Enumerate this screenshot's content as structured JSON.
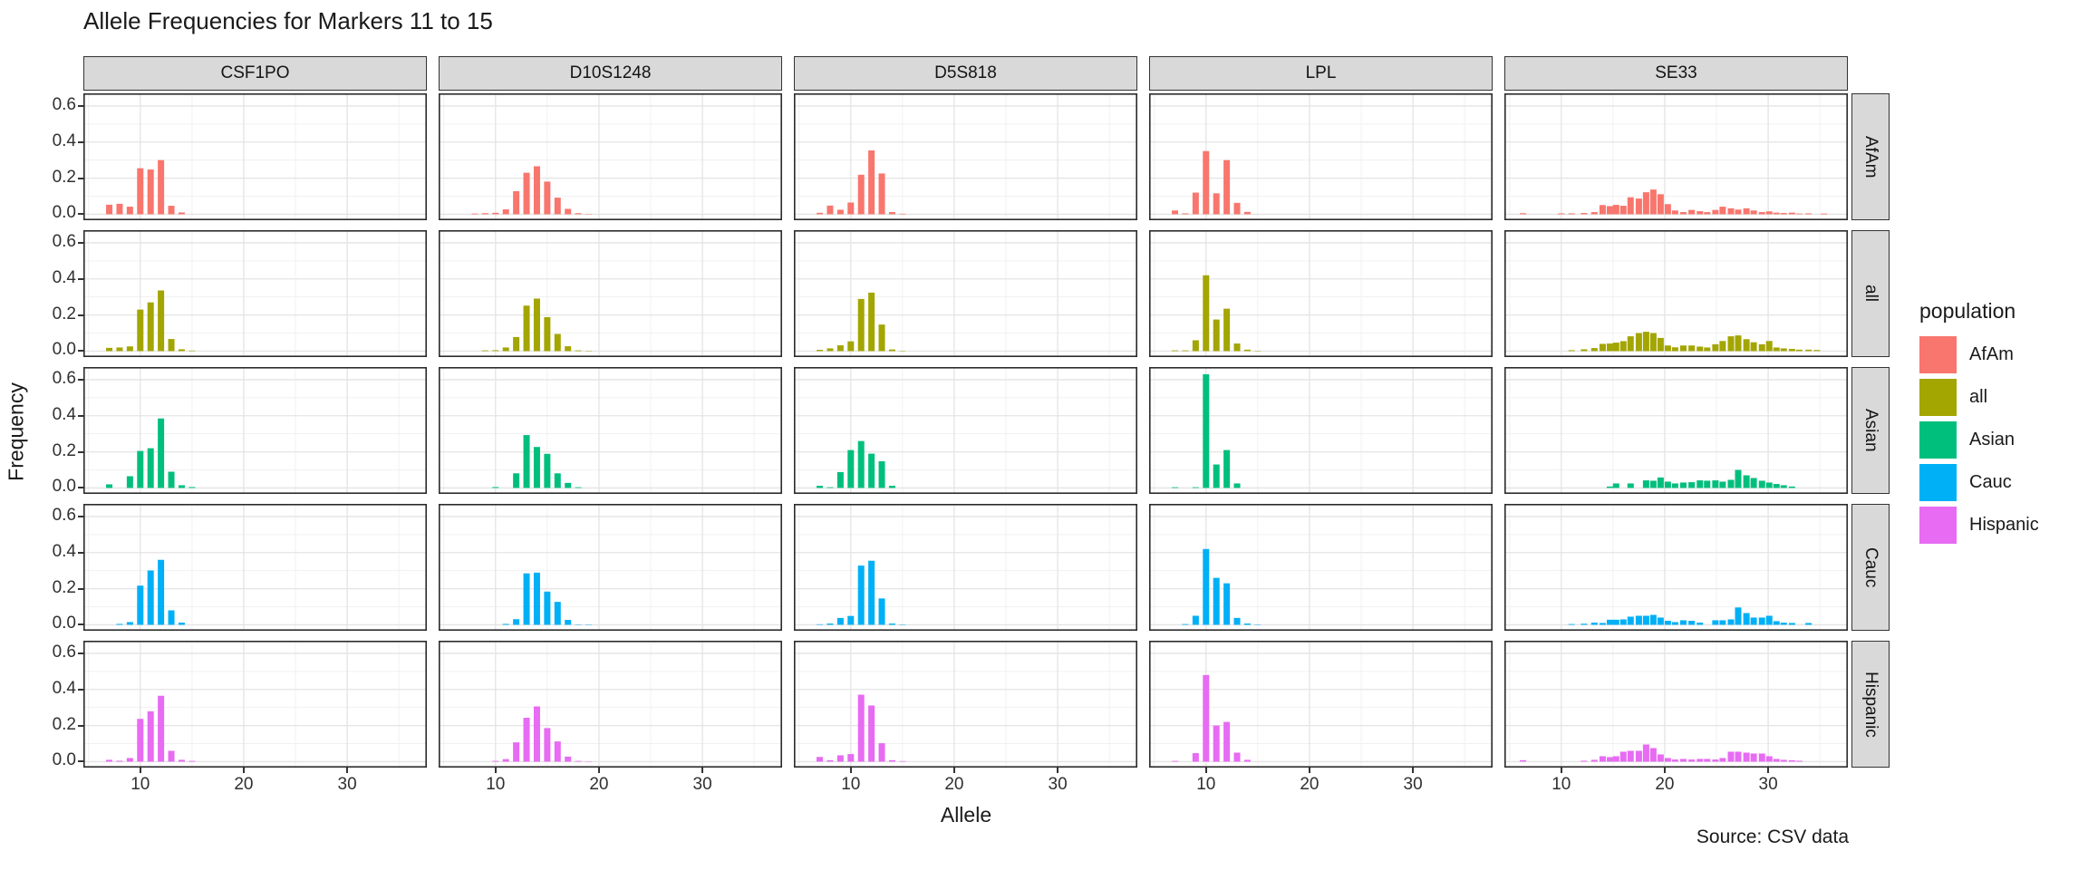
{
  "title": "Allele Frequencies for Markers 11 to 15",
  "caption": "Source: CSV data",
  "legend": {
    "title": "population",
    "entries": [
      {
        "label": "AfAm",
        "color": "#F8766D"
      },
      {
        "label": "all",
        "color": "#A3A500"
      },
      {
        "label": "Asian",
        "color": "#00BF7D"
      },
      {
        "label": "Cauc",
        "color": "#00B0F6"
      },
      {
        "label": "Hispanic",
        "color": "#E76BF3"
      }
    ]
  },
  "theme": {
    "strip_bg": "#d9d9d9",
    "panel_border": "#2b2b2b",
    "grid_major": "#e4e4e4",
    "grid_minor": "#f1f1f1",
    "axis_text": "#303030"
  },
  "chart_data": {
    "type": "bar",
    "title": "Allele Frequencies for Markers 11 to 15",
    "xlabel": "Allele",
    "ylabel": "Frequency",
    "x_ticks": [
      10,
      20,
      30
    ],
    "x_minor_ticks": [
      5,
      15,
      25,
      35
    ],
    "y_ticks": [
      0.0,
      0.2,
      0.4,
      0.6
    ],
    "y_tick_labels": [
      "0.0",
      "0.2",
      "0.4",
      "0.6"
    ],
    "y_minor_ticks": [
      0.1,
      0.3,
      0.5
    ],
    "xlim": [
      4.5,
      37.7
    ],
    "ylim": [
      -0.033,
      0.67
    ],
    "grid": true,
    "legend_position": "right",
    "col_facets": [
      "CSF1PO",
      "D10S1248",
      "D5S818",
      "LPL",
      "SE33"
    ],
    "row_facets": [
      "AfAm",
      "all",
      "Asian",
      "Cauc",
      "Hispanic"
    ],
    "series": [
      {
        "population": "AfAm",
        "color": "#F8766D",
        "markers": {
          "CSF1PO": {
            "7": 0.053,
            "8": 0.058,
            "9": 0.042,
            "10": 0.255,
            "11": 0.248,
            "12": 0.3,
            "13": 0.047,
            "14": 0.01
          },
          "D10S1248": {
            "8": 0.004,
            "9": 0.006,
            "10": 0.008,
            "11": 0.027,
            "12": 0.128,
            "13": 0.23,
            "14": 0.266,
            "15": 0.181,
            "16": 0.092,
            "17": 0.03,
            "18": 0.006,
            "19": 0.002
          },
          "D5S818": {
            "7": 0.008,
            "8": 0.048,
            "9": 0.025,
            "10": 0.065,
            "11": 0.219,
            "12": 0.354,
            "13": 0.226,
            "14": 0.012,
            "15": 0.003
          },
          "LPL": {
            "7": 0.021,
            "8": 0.005,
            "9": 0.12,
            "10": 0.35,
            "11": 0.116,
            "12": 0.3,
            "13": 0.063,
            "14": 0.013
          },
          "SE33": {
            "6.3": 0.006,
            "10": 0.005,
            "11": 0.005,
            "12.2": 0.007,
            "13.2": 0.012,
            "14": 0.051,
            "14.7": 0.045,
            "15.3": 0.052,
            "16": 0.047,
            "16.7": 0.094,
            "17.5": 0.087,
            "18.2": 0.122,
            "18.9": 0.137,
            "19.6": 0.111,
            "20.3": 0.056,
            "21": 0.021,
            "21.8": 0.012,
            "22.6": 0.024,
            "23.4": 0.017,
            "24.1": 0.012,
            "24.9": 0.024,
            "25.6": 0.042,
            "26.4": 0.033,
            "27.1": 0.026,
            "27.9": 0.033,
            "28.6": 0.021,
            "29.4": 0.012,
            "30.1": 0.016,
            "30.8": 0.009,
            "31.5": 0.007,
            "32.3": 0.009,
            "33": 0.004,
            "33.9": 0.005,
            "35.4": 0.004
          }
        }
      },
      {
        "population": "all",
        "color": "#A3A500",
        "markers": {
          "CSF1PO": {
            "7": 0.018,
            "8": 0.02,
            "9": 0.026,
            "10": 0.23,
            "11": 0.27,
            "12": 0.336,
            "13": 0.067,
            "14": 0.01,
            "15": 0.003
          },
          "D10S1248": {
            "9": 0.004,
            "10": 0.005,
            "11": 0.02,
            "12": 0.078,
            "13": 0.252,
            "14": 0.291,
            "15": 0.188,
            "16": 0.095,
            "17": 0.027,
            "18": 0.004,
            "19": 0.002
          },
          "D5S818": {
            "7": 0.007,
            "8": 0.015,
            "9": 0.032,
            "10": 0.054,
            "11": 0.289,
            "12": 0.324,
            "13": 0.147,
            "14": 0.009,
            "15": 0.002
          },
          "LPL": {
            "7": 0.004,
            "8": 0.004,
            "9": 0.06,
            "10": 0.42,
            "11": 0.175,
            "12": 0.235,
            "13": 0.042,
            "14": 0.008,
            "15": 0.002
          },
          "SE33": {
            "11": 0.005,
            "12.2": 0.01,
            "13.2": 0.017,
            "14": 0.04,
            "14.7": 0.042,
            "15.3": 0.047,
            "16": 0.055,
            "16.7": 0.082,
            "17.5": 0.1,
            "18.2": 0.107,
            "18.9": 0.1,
            "19.6": 0.073,
            "20.3": 0.031,
            "21": 0.021,
            "21.8": 0.031,
            "22.6": 0.031,
            "23.4": 0.025,
            "24.1": 0.02,
            "24.9": 0.038,
            "25.6": 0.056,
            "26.4": 0.082,
            "27.1": 0.087,
            "27.9": 0.066,
            "28.6": 0.049,
            "29.4": 0.038,
            "30.1": 0.056,
            "30.8": 0.02,
            "31.5": 0.015,
            "32.3": 0.012,
            "33": 0.008,
            "33.9": 0.008,
            "34.7": 0.006
          }
        }
      },
      {
        "population": "Asian",
        "color": "#00BF7D",
        "markers": {
          "CSF1PO": {
            "7": 0.02,
            "9": 0.065,
            "10": 0.205,
            "11": 0.22,
            "12": 0.385,
            "13": 0.09,
            "14": 0.015,
            "15": 0.005
          },
          "D10S1248": {
            "10": 0.005,
            "12": 0.081,
            "13": 0.293,
            "14": 0.227,
            "15": 0.189,
            "16": 0.081,
            "17": 0.028,
            "18": 0.004
          },
          "D5S818": {
            "7": 0.012,
            "8": 0.004,
            "9": 0.088,
            "10": 0.21,
            "11": 0.26,
            "12": 0.19,
            "13": 0.148,
            "14": 0.012
          },
          "LPL": {
            "7": 0.004,
            "9": 0.004,
            "10": 0.63,
            "11": 0.13,
            "12": 0.21,
            "13": 0.025
          },
          "SE33": {
            "14.7": 0.008,
            "15.3": 0.025,
            "16.7": 0.025,
            "18.2": 0.042,
            "18.9": 0.04,
            "19.6": 0.058,
            "20.3": 0.035,
            "21": 0.025,
            "21.8": 0.03,
            "22.6": 0.032,
            "23.4": 0.042,
            "24.1": 0.04,
            "24.9": 0.042,
            "25.6": 0.035,
            "26.4": 0.045,
            "27.1": 0.1,
            "27.9": 0.07,
            "28.6": 0.055,
            "29.4": 0.04,
            "30.1": 0.03,
            "30.8": 0.022,
            "31.5": 0.015,
            "32.3": 0.008
          }
        }
      },
      {
        "population": "Cauc",
        "color": "#00B0F6",
        "markers": {
          "CSF1PO": {
            "8": 0.005,
            "9": 0.015,
            "10": 0.217,
            "11": 0.301,
            "12": 0.36,
            "13": 0.08,
            "14": 0.012
          },
          "D10S1248": {
            "11": 0.005,
            "12": 0.031,
            "13": 0.285,
            "14": 0.289,
            "15": 0.184,
            "16": 0.127,
            "17": 0.027,
            "18": 0.002,
            "19": 0.002
          },
          "D5S818": {
            "7": 0.003,
            "8": 0.007,
            "9": 0.038,
            "10": 0.049,
            "11": 0.328,
            "12": 0.355,
            "13": 0.146,
            "14": 0.007,
            "15": 0.002
          },
          "LPL": {
            "8": 0.004,
            "9": 0.05,
            "10": 0.42,
            "11": 0.26,
            "12": 0.23,
            "13": 0.038,
            "14": 0.007,
            "15": 0.002
          },
          "SE33": {
            "11": 0.004,
            "12.2": 0.006,
            "13.2": 0.012,
            "14": 0.01,
            "14.7": 0.028,
            "15.3": 0.028,
            "16": 0.03,
            "16.7": 0.045,
            "17.5": 0.05,
            "18.2": 0.05,
            "18.9": 0.055,
            "19.6": 0.04,
            "20.3": 0.022,
            "21": 0.015,
            "21.8": 0.025,
            "22.6": 0.022,
            "23.4": 0.012,
            "24.9": 0.025,
            "25.6": 0.025,
            "26.4": 0.03,
            "27.1": 0.096,
            "27.9": 0.065,
            "28.6": 0.04,
            "29.4": 0.04,
            "30.1": 0.05,
            "30.8": 0.02,
            "31.5": 0.012,
            "32.3": 0.01,
            "33.9": 0.01
          }
        }
      },
      {
        "population": "Hispanic",
        "color": "#E76BF3",
        "markers": {
          "CSF1PO": {
            "7": 0.01,
            "8": 0.005,
            "9": 0.02,
            "10": 0.237,
            "11": 0.279,
            "12": 0.365,
            "13": 0.06,
            "14": 0.01,
            "15": 0.004
          },
          "D10S1248": {
            "10": 0.004,
            "11": 0.014,
            "12": 0.107,
            "13": 0.243,
            "14": 0.306,
            "15": 0.186,
            "16": 0.112,
            "17": 0.028,
            "18": 0.004,
            "19": 0.002
          },
          "D5S818": {
            "7": 0.026,
            "8": 0.008,
            "9": 0.035,
            "10": 0.042,
            "11": 0.371,
            "12": 0.311,
            "13": 0.102,
            "14": 0.008,
            "15": 0.003
          },
          "LPL": {
            "7": 0.004,
            "9": 0.047,
            "10": 0.48,
            "11": 0.2,
            "12": 0.22,
            "13": 0.05,
            "14": 0.01
          },
          "SE33": {
            "6.3": 0.008,
            "12.2": 0.005,
            "13.2": 0.01,
            "14": 0.03,
            "14.7": 0.025,
            "15.3": 0.03,
            "16": 0.055,
            "16.7": 0.06,
            "17.5": 0.06,
            "18.2": 0.095,
            "18.9": 0.075,
            "19.6": 0.04,
            "20.3": 0.02,
            "21": 0.012,
            "21.8": 0.015,
            "22.6": 0.012,
            "23.4": 0.015,
            "24.1": 0.015,
            "24.9": 0.012,
            "25.6": 0.02,
            "26.4": 0.055,
            "27.1": 0.055,
            "27.9": 0.05,
            "28.6": 0.045,
            "29.4": 0.045,
            "30.1": 0.03,
            "30.8": 0.015,
            "31.5": 0.01,
            "32.3": 0.008,
            "33": 0.005
          }
        }
      }
    ]
  }
}
